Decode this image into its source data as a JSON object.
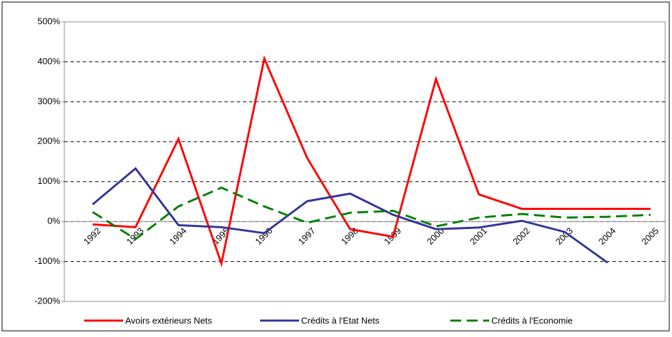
{
  "chart_data": {
    "type": "line",
    "categories": [
      "1992",
      "1993",
      "1994",
      "1995",
      "1996",
      "1997",
      "1998",
      "1999",
      "2000",
      "2001",
      "2002",
      "2003",
      "2004",
      "2005"
    ],
    "series": [
      {
        "name": "Avoirs extérieurs Nets",
        "color": "#ff0000",
        "dash": false,
        "values": [
          -7,
          -14,
          207,
          -105,
          408,
          159,
          -19,
          -38,
          357,
          68,
          32,
          32,
          32,
          32
        ]
      },
      {
        "name": "Crédits à l'Etat Nets",
        "color": "#333399",
        "dash": false,
        "values": [
          43,
          133,
          -9,
          -14,
          -29,
          51,
          70,
          17,
          -19,
          -15,
          2,
          -26,
          -103,
          null
        ]
      },
      {
        "name": "Crédits à l'Economie",
        "color": "#008000",
        "dash": true,
        "values": [
          24,
          -44,
          38,
          85,
          38,
          -3,
          22,
          27,
          -12,
          10,
          19,
          10,
          12,
          17
        ]
      }
    ],
    "ylim": [
      -200,
      500
    ],
    "yticks": [
      {
        "value": -200,
        "label": "-200%"
      },
      {
        "value": -100,
        "label": "-100%"
      },
      {
        "value": 0,
        "label": "0%"
      },
      {
        "value": 100,
        "label": "100%"
      },
      {
        "value": 200,
        "label": "200%"
      },
      {
        "value": 300,
        "label": "300%"
      },
      {
        "value": 400,
        "label": "400%"
      },
      {
        "value": 500,
        "label": "500%"
      }
    ],
    "grid": true,
    "legend": "bottom"
  }
}
